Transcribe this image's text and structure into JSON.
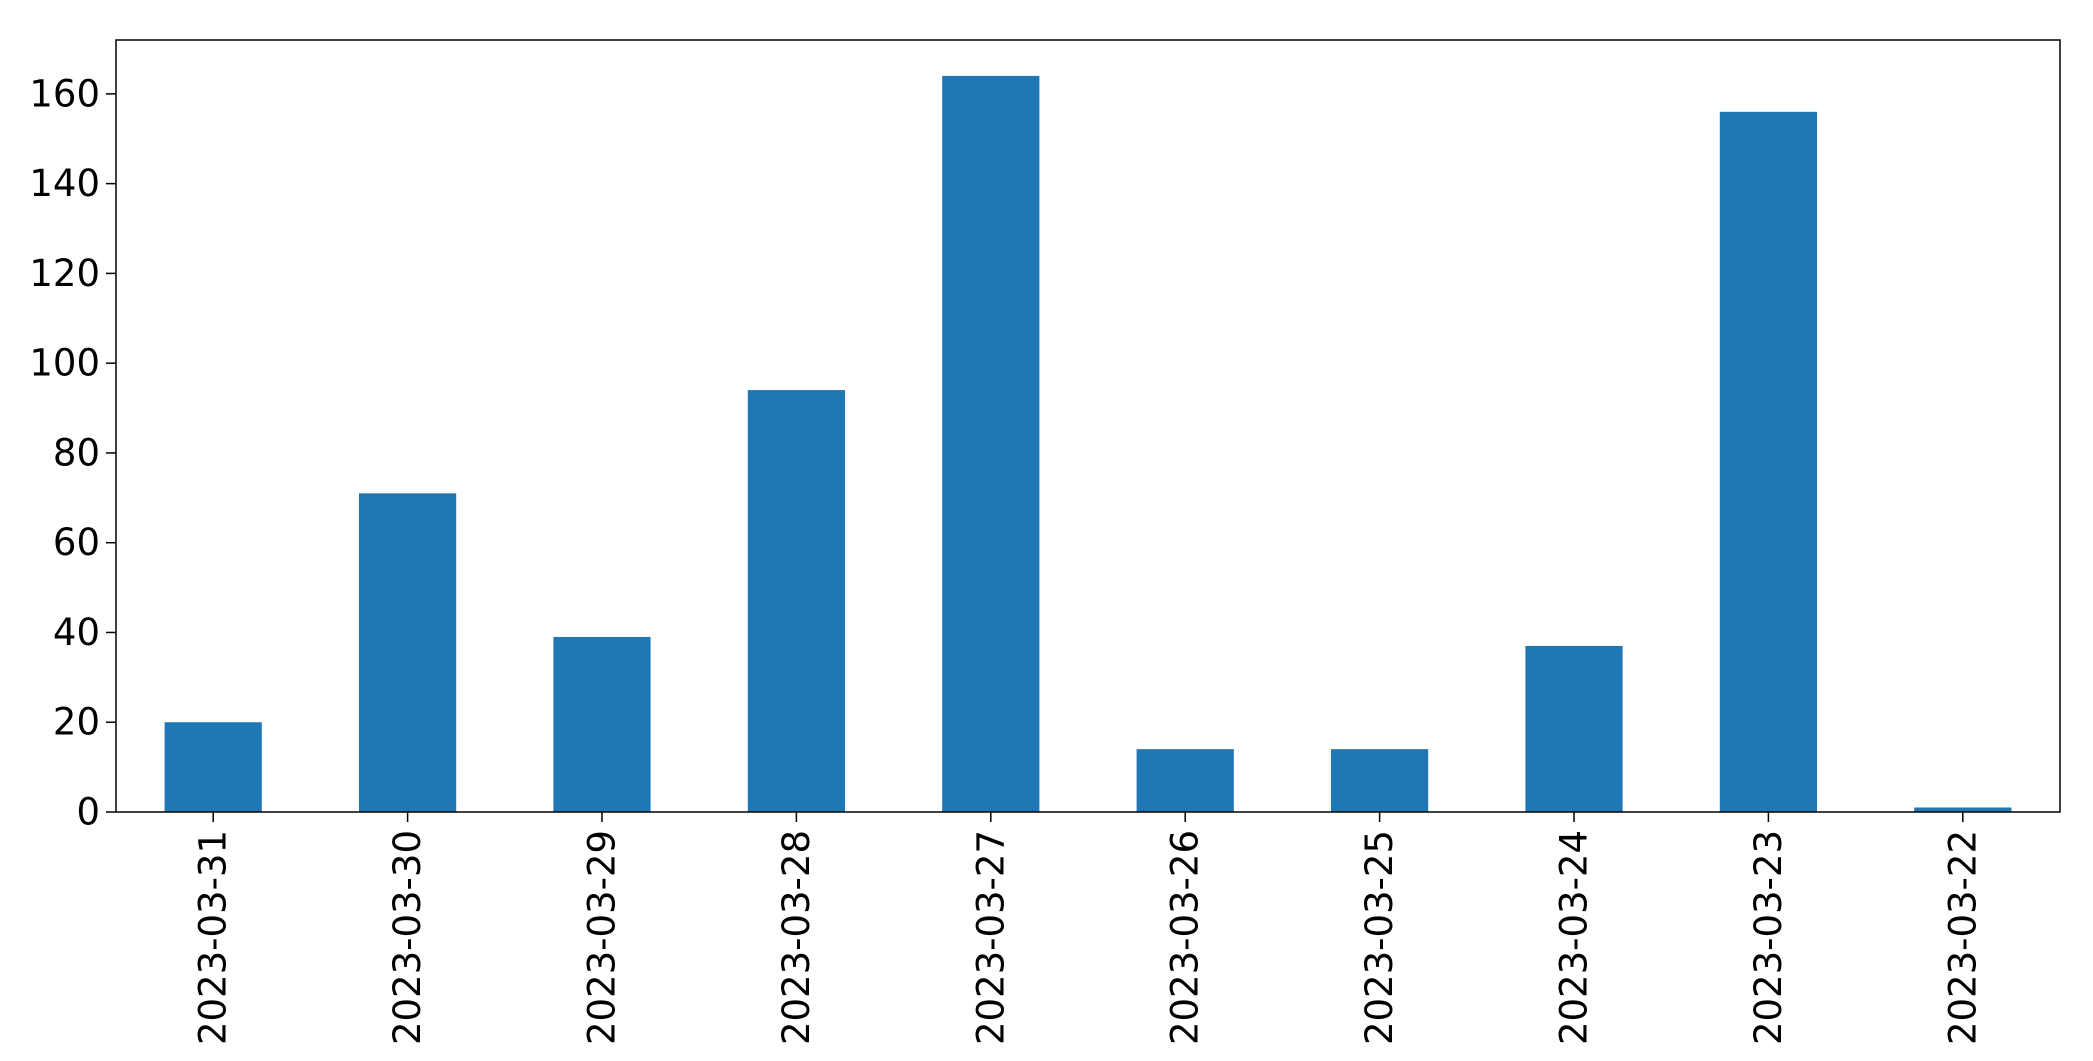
{
  "chart_data": {
    "type": "bar",
    "categories": [
      "2023-03-31",
      "2023-03-30",
      "2023-03-29",
      "2023-03-28",
      "2023-03-27",
      "2023-03-26",
      "2023-03-25",
      "2023-03-24",
      "2023-03-23",
      "2023-03-22"
    ],
    "values": [
      20,
      71,
      39,
      94,
      164,
      14,
      14,
      37,
      156,
      1
    ],
    "yticks": [
      "0",
      "20",
      "40",
      "60",
      "80",
      "100",
      "120",
      "140",
      "160"
    ],
    "ylim": [
      0,
      172
    ],
    "bar_color": "#1f77b4",
    "grid": false,
    "legend": "none"
  }
}
